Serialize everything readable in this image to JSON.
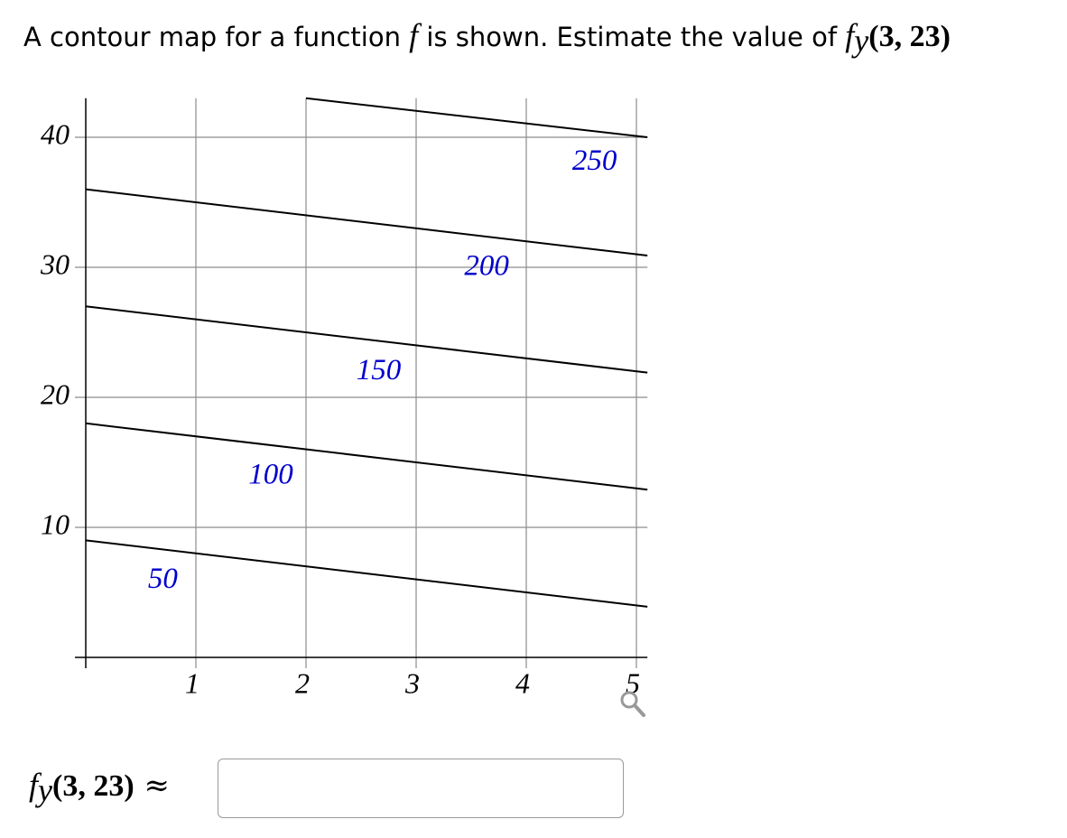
{
  "question": {
    "text_before": "A contour map for a function ",
    "f": "f",
    "text_middle": " is shown. Estimate the value of ",
    "expression": {
      "function": "f",
      "subscript": "y",
      "args": "(3, 23)"
    }
  },
  "chart_data": {
    "type": "contour",
    "xlim": [
      0,
      5.1
    ],
    "ylim": [
      0,
      43
    ],
    "xticks": [
      1,
      2,
      3,
      4,
      5
    ],
    "yticks": [
      10,
      20,
      30,
      40
    ],
    "grid": true,
    "line_color": "#000000",
    "label_color": "#0000cc",
    "grid_color": "#8c8c8c",
    "contours": [
      {
        "level": 50,
        "x": [
          0,
          5.1
        ],
        "y": [
          9,
          3.9
        ]
      },
      {
        "level": 100,
        "x": [
          0,
          5.1
        ],
        "y": [
          18,
          12.9
        ]
      },
      {
        "level": 150,
        "x": [
          0,
          5.1
        ],
        "y": [
          27,
          21.9
        ]
      },
      {
        "level": 200,
        "x": [
          0,
          5.1
        ],
        "y": [
          36,
          30.9
        ]
      },
      {
        "level": 250,
        "x": [
          2,
          5.1
        ],
        "y": [
          43,
          40
        ]
      }
    ]
  },
  "answer": {
    "function": "f",
    "subscript": "y",
    "args": "(3, 23)",
    "relation": "≈"
  }
}
